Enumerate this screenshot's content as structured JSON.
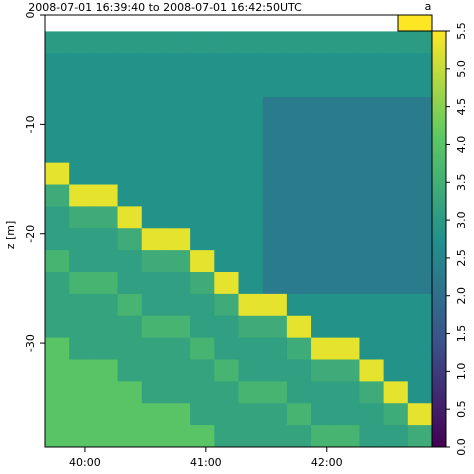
{
  "chart_data": {
    "type": "heatmap",
    "title": "2008-07-01 16:39:40 to 2008-07-01 16:42:50UTC",
    "panel_label": "a",
    "y_label": "z [m]",
    "x": [
      39.67,
      39.87,
      40.07,
      40.27,
      40.47,
      40.67,
      40.87,
      41.07,
      41.27,
      41.47,
      41.67,
      41.87,
      42.07,
      42.27,
      42.47,
      42.67,
      42.87
    ],
    "y": [
      -1.5,
      -3.5,
      -5.5,
      -7.5,
      -9.5,
      -11.5,
      -13.5,
      -15.5,
      -17.5,
      -19.5,
      -21.5,
      -23.5,
      -25.5,
      -27.5,
      -29.5,
      -31.5,
      -33.5,
      -35.5,
      -37.5,
      -39.5
    ],
    "values": [
      [
        3.0,
        3.0,
        3.0,
        3.0,
        3.0,
        3.0,
        3.0,
        3.0,
        3.0,
        3.0,
        3.0,
        3.0,
        3.0,
        3.0,
        3.0,
        3.0
      ],
      [
        2.8,
        2.8,
        2.8,
        2.8,
        2.8,
        2.8,
        2.8,
        2.8,
        2.8,
        2.8,
        2.8,
        2.8,
        2.8,
        2.8,
        2.8,
        2.8
      ],
      [
        2.8,
        2.8,
        2.8,
        2.8,
        2.8,
        2.8,
        2.8,
        2.8,
        2.8,
        2.8,
        2.8,
        2.8,
        2.8,
        2.8,
        2.8,
        2.8
      ],
      [
        2.8,
        2.8,
        2.8,
        2.8,
        2.8,
        2.8,
        2.8,
        2.8,
        2.8,
        2.3,
        2.3,
        2.3,
        2.3,
        2.3,
        2.3,
        2.3
      ],
      [
        2.8,
        2.8,
        2.8,
        2.8,
        2.8,
        2.8,
        2.8,
        2.8,
        2.8,
        2.3,
        2.3,
        2.3,
        2.3,
        2.3,
        2.3,
        2.3
      ],
      [
        2.8,
        2.8,
        2.8,
        2.8,
        2.8,
        2.8,
        2.8,
        2.8,
        2.8,
        2.3,
        2.3,
        2.3,
        2.3,
        2.3,
        2.3,
        2.3
      ],
      [
        5.3,
        2.8,
        2.8,
        2.8,
        2.8,
        2.8,
        2.8,
        2.8,
        2.8,
        2.3,
        2.3,
        2.3,
        2.3,
        2.3,
        2.3,
        2.3
      ],
      [
        3.4,
        5.3,
        5.3,
        2.8,
        2.8,
        2.8,
        2.8,
        2.8,
        2.8,
        2.3,
        2.3,
        2.3,
        2.3,
        2.3,
        2.3,
        2.3
      ],
      [
        3.1,
        3.4,
        3.4,
        5.3,
        2.8,
        2.8,
        2.8,
        2.8,
        2.8,
        2.3,
        2.3,
        2.3,
        2.3,
        2.3,
        2.3,
        2.3
      ],
      [
        3.1,
        3.1,
        3.1,
        3.4,
        5.3,
        5.3,
        2.8,
        2.8,
        2.8,
        2.3,
        2.3,
        2.3,
        2.3,
        2.3,
        2.3,
        2.3
      ],
      [
        3.6,
        3.1,
        3.1,
        3.1,
        3.4,
        3.4,
        5.3,
        2.8,
        2.8,
        2.3,
        2.3,
        2.3,
        2.3,
        2.3,
        2.3,
        2.3
      ],
      [
        3.2,
        3.6,
        3.6,
        3.1,
        3.1,
        3.1,
        3.4,
        5.3,
        2.8,
        2.3,
        2.3,
        2.3,
        2.3,
        2.3,
        2.3,
        2.3
      ],
      [
        3.2,
        3.2,
        3.2,
        3.6,
        3.1,
        3.1,
        3.1,
        3.4,
        5.3,
        5.3,
        2.8,
        2.8,
        2.8,
        2.8,
        2.8,
        2.8
      ],
      [
        3.2,
        3.2,
        3.2,
        3.2,
        3.6,
        3.6,
        3.1,
        3.1,
        3.4,
        3.4,
        5.3,
        2.8,
        2.8,
        2.8,
        2.8,
        2.8
      ],
      [
        4.0,
        3.2,
        3.2,
        3.2,
        3.2,
        3.2,
        3.6,
        3.1,
        3.1,
        3.1,
        3.4,
        5.3,
        5.3,
        2.8,
        2.8,
        2.8
      ],
      [
        4.0,
        4.0,
        4.0,
        3.2,
        3.2,
        3.2,
        3.2,
        3.6,
        3.1,
        3.1,
        3.1,
        3.4,
        3.4,
        5.3,
        2.8,
        2.8
      ],
      [
        4.0,
        4.0,
        4.0,
        4.0,
        3.2,
        3.2,
        3.2,
        3.2,
        3.6,
        3.6,
        3.1,
        3.1,
        3.1,
        3.4,
        5.3,
        2.8
      ],
      [
        4.0,
        4.0,
        4.0,
        4.0,
        4.0,
        4.0,
        3.2,
        3.2,
        3.2,
        3.2,
        3.6,
        3.1,
        3.1,
        3.1,
        3.4,
        5.3
      ],
      [
        4.0,
        4.0,
        4.0,
        4.0,
        4.0,
        4.0,
        4.0,
        3.2,
        3.2,
        3.2,
        3.2,
        3.6,
        3.6,
        3.1,
        3.1,
        3.4
      ]
    ],
    "xlim": [
      39.67,
      42.87
    ],
    "xticks": [
      {
        "value": 40,
        "label": "40:00"
      },
      {
        "value": 41,
        "label": "41:00"
      },
      {
        "value": 42,
        "label": "42:00"
      }
    ],
    "ylim": [
      -39.5,
      0
    ],
    "yticks": [
      0,
      -10,
      -20,
      -30
    ],
    "colormap": "viridis",
    "zlim": [
      0,
      5.5
    ],
    "zticks": [
      {
        "value": 0,
        "label": "0.0"
      },
      0.5,
      {
        "value": 1,
        "label": "1.0"
      },
      1.5,
      {
        "value": 2,
        "label": "2.0"
      },
      2.5,
      {
        "value": 3,
        "label": "3.0"
      },
      3.5,
      {
        "value": 4,
        "label": "4.0"
      },
      4.5,
      {
        "value": 5,
        "label": "5.0"
      },
      5.5
    ]
  }
}
